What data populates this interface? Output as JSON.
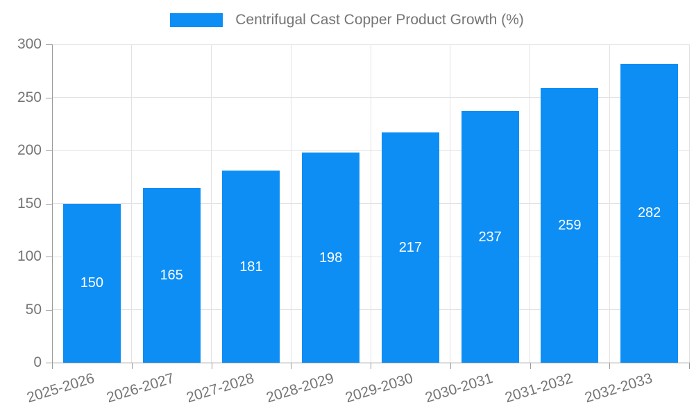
{
  "chart_data": {
    "type": "bar",
    "title": "Centrifugal Cast Copper Product Growth (%)",
    "categories": [
      "2025-2026",
      "2026-2027",
      "2027-2028",
      "2028-2029",
      "2029-2030",
      "2030-2031",
      "2031-2032",
      "2032-2033"
    ],
    "values": [
      150,
      165,
      181,
      198,
      217,
      237,
      259,
      282
    ],
    "xlabel": "",
    "ylabel": "",
    "ylim": [
      0,
      300
    ],
    "yticks": [
      0,
      50,
      100,
      150,
      200,
      250,
      300
    ],
    "grid": true,
    "legend_position": "top-center",
    "x_label_rotation_deg": -17,
    "colors": {
      "bar": "#0d8ef5",
      "bar_value_label": "#ffffff",
      "axis_line": "#999999",
      "grid_line": "#e2e2e2",
      "tick_text": "#757575",
      "title_text": "#757575",
      "background": "#ffffff"
    }
  }
}
